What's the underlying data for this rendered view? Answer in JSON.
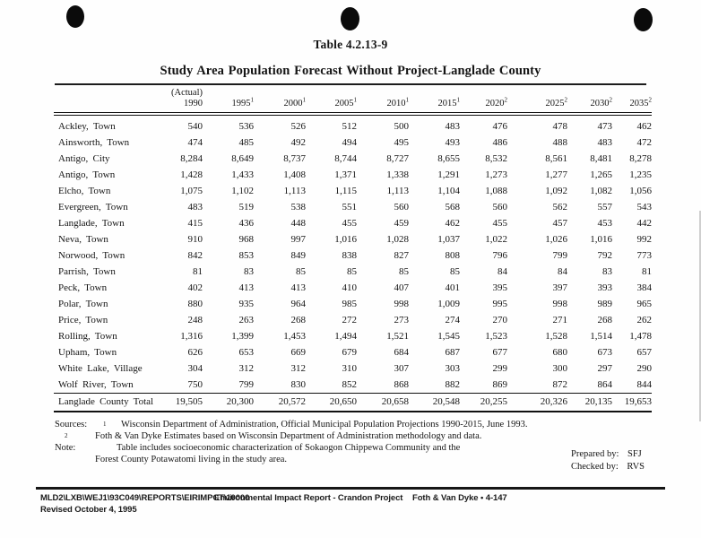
{
  "page": {
    "table_number": "Table 4.2.13-9",
    "title": "Study Area Population Forecast Without Project-Langlade County"
  },
  "table": {
    "columns": [
      {
        "line1": "(Actual)",
        "line2": "1990",
        "sup": ""
      },
      {
        "line1": "",
        "line2": "1995",
        "sup": "1"
      },
      {
        "line1": "",
        "line2": "2000",
        "sup": "1"
      },
      {
        "line1": "",
        "line2": "2005",
        "sup": "1"
      },
      {
        "line1": "",
        "line2": "2010",
        "sup": "1"
      },
      {
        "line1": "",
        "line2": "2015",
        "sup": "1"
      },
      {
        "line1": "",
        "line2": "2020",
        "sup": "2"
      },
      {
        "line1": "",
        "line2": "2025",
        "sup": "2"
      },
      {
        "line1": "",
        "line2": "2030",
        "sup": "2"
      },
      {
        "line1": "",
        "line2": "2035",
        "sup": "2"
      }
    ],
    "rows": [
      {
        "label": "Ackley, Town",
        "values": [
          "540",
          "536",
          "526",
          "512",
          "500",
          "483",
          "476",
          "478",
          "473",
          "462"
        ]
      },
      {
        "label": "Ainsworth, Town",
        "values": [
          "474",
          "485",
          "492",
          "494",
          "495",
          "493",
          "486",
          "488",
          "483",
          "472"
        ]
      },
      {
        "label": "Antigo, City",
        "values": [
          "8,284",
          "8,649",
          "8,737",
          "8,744",
          "8,727",
          "8,655",
          "8,532",
          "8,561",
          "8,481",
          "8,278"
        ]
      },
      {
        "label": "Antigo, Town",
        "values": [
          "1,428",
          "1,433",
          "1,408",
          "1,371",
          "1,338",
          "1,291",
          "1,273",
          "1,277",
          "1,265",
          "1,235"
        ]
      },
      {
        "label": "Elcho, Town",
        "values": [
          "1,075",
          "1,102",
          "1,113",
          "1,115",
          "1,113",
          "1,104",
          "1,088",
          "1,092",
          "1,082",
          "1,056"
        ]
      },
      {
        "label": "Evergreen, Town",
        "values": [
          "483",
          "519",
          "538",
          "551",
          "560",
          "568",
          "560",
          "562",
          "557",
          "543"
        ]
      },
      {
        "label": "Langlade, Town",
        "values": [
          "415",
          "436",
          "448",
          "455",
          "459",
          "462",
          "455",
          "457",
          "453",
          "442"
        ]
      },
      {
        "label": "Neva, Town",
        "values": [
          "910",
          "968",
          "997",
          "1,016",
          "1,028",
          "1,037",
          "1,022",
          "1,026",
          "1,016",
          "992"
        ]
      },
      {
        "label": "Norwood, Town",
        "values": [
          "842",
          "853",
          "849",
          "838",
          "827",
          "808",
          "796",
          "799",
          "792",
          "773"
        ]
      },
      {
        "label": "Parrish, Town",
        "values": [
          "81",
          "83",
          "85",
          "85",
          "85",
          "85",
          "84",
          "84",
          "83",
          "81"
        ]
      },
      {
        "label": "Peck, Town",
        "values": [
          "402",
          "413",
          "413",
          "410",
          "407",
          "401",
          "395",
          "397",
          "393",
          "384"
        ]
      },
      {
        "label": "Polar, Town",
        "values": [
          "880",
          "935",
          "964",
          "985",
          "998",
          "1,009",
          "995",
          "998",
          "989",
          "965"
        ]
      },
      {
        "label": "Price, Town",
        "values": [
          "248",
          "263",
          "268",
          "272",
          "273",
          "274",
          "270",
          "271",
          "268",
          "262"
        ]
      },
      {
        "label": "Rolling, Town",
        "values": [
          "1,316",
          "1,399",
          "1,453",
          "1,494",
          "1,521",
          "1,545",
          "1,523",
          "1,528",
          "1,514",
          "1,478"
        ]
      },
      {
        "label": "Upham, Town",
        "values": [
          "626",
          "653",
          "669",
          "679",
          "684",
          "687",
          "677",
          "680",
          "673",
          "657"
        ]
      },
      {
        "label": "White Lake, Village",
        "values": [
          "304",
          "312",
          "312",
          "310",
          "307",
          "303",
          "299",
          "300",
          "297",
          "290"
        ]
      },
      {
        "label": "Wolf River, Town",
        "values": [
          "750",
          "799",
          "830",
          "852",
          "868",
          "882",
          "869",
          "872",
          "864",
          "844"
        ]
      }
    ],
    "total_row": {
      "label": "Langlade County Total",
      "values": [
        "19,505",
        "20,300",
        "20,572",
        "20,650",
        "20,658",
        "20,548",
        "20,255",
        "20,326",
        "20,135",
        "19,653"
      ]
    }
  },
  "notes": {
    "sources_label": "Sources:",
    "source1_sup": "1",
    "source1": "Wisconsin Department of Administration, Official Municipal Population Projections 1990-2015, June 1993.",
    "source2_sup": "2",
    "source2": "Foth & Van Dyke Estimates based on Wisconsin Department of Administration methodology and data.",
    "note_label": "Note:",
    "note_line1": "Table includes socioeconomic characterization of Sokaogon Chippewa Community and the",
    "note_line2": "Forest County Potawatomi living in the study area."
  },
  "signoff": {
    "prepared_label": "Prepared by:",
    "prepared_value": "SFJ",
    "checked_label": "Checked by:",
    "checked_value": "RVS"
  },
  "footer": {
    "path": "MLD2\\LXB\\WEJ1\\93C049\\REPORTS\\EIRIMPCT\\10000",
    "doc_title": "Environmental Impact Report - Crandon Project",
    "page_ref": "Foth & Van Dyke • 4-147",
    "revised": "Revised October 4, 1995"
  }
}
